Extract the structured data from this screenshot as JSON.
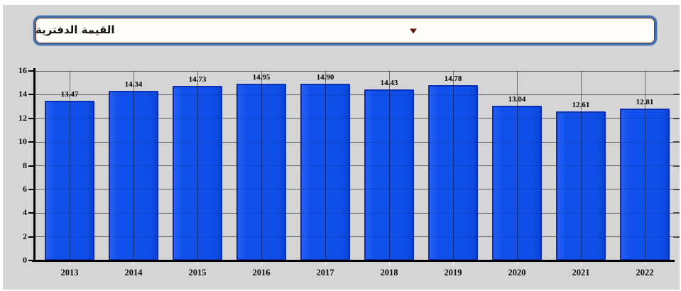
{
  "page": {
    "background_color": "#d5d5d5",
    "outer_border_color": "#ffffff"
  },
  "dropdown": {
    "label": "القيمة الدفترية",
    "caret_icon": "caret-down",
    "border_color": "#4070ad",
    "inner_border_color": "#7d3222",
    "caret_color": "#5e1a05"
  },
  "chart_data": {
    "type": "bar",
    "title": "القيمة الدفترية",
    "categories": [
      "2013",
      "2014",
      "2015",
      "2016",
      "2017",
      "2018",
      "2019",
      "2020",
      "2021",
      "2022"
    ],
    "values": [
      13.47,
      14.34,
      14.73,
      14.95,
      14.9,
      14.43,
      14.78,
      13.04,
      12.61,
      12.81
    ],
    "value_labels": [
      "13.47",
      "14.34",
      "14.73",
      "14.95",
      "14.90",
      "14.43",
      "14.78",
      "13.04",
      "12.61",
      "12.81"
    ],
    "xlabel": "",
    "ylabel": "",
    "ylim": [
      0,
      16
    ],
    "yticks": [
      0,
      2,
      4,
      6,
      8,
      10,
      12,
      14,
      16
    ],
    "grid": "horizontal and vertical, gray on light-gray plot background",
    "legend": "none",
    "bar_color": "#1150ec",
    "bar_border_color": "#0a2fb4",
    "label_color": "#000000"
  }
}
